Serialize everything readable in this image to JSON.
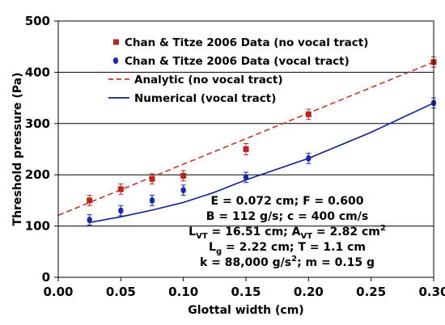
{
  "chart_data": {
    "type": "scatter",
    "xlabel": "Glottal  width (cm)",
    "ylabel": "Threshold pressure (Pa)",
    "xlim": [
      0.0,
      0.3
    ],
    "ylim": [
      0,
      500
    ],
    "x_ticks": [
      "0.00",
      "0.05",
      "0.10",
      "0.15",
      "0.20",
      "0.25",
      "0.30"
    ],
    "y_ticks": [
      "0",
      "100",
      "200",
      "300",
      "400",
      "500"
    ],
    "grid": "horizontal",
    "legend_position": "top-left",
    "series": [
      {
        "name": "Chan & Titze 2006 Data (no vocal tract)",
        "kind": "points",
        "marker": "square",
        "color": "#b5271f",
        "x": [
          0.025,
          0.05,
          0.075,
          0.1,
          0.15,
          0.2,
          0.3
        ],
        "y": [
          150,
          172,
          192,
          198,
          250,
          318,
          420
        ],
        "err": [
          10,
          10,
          10,
          10,
          11,
          10,
          10
        ]
      },
      {
        "name": "Chan & Titze 2006 Data (vocal tract)",
        "kind": "points",
        "marker": "circle",
        "color": "#1a2aa6",
        "x": [
          0.025,
          0.05,
          0.075,
          0.1,
          0.15,
          0.2,
          0.3
        ],
        "y": [
          112,
          130,
          150,
          170,
          195,
          232,
          340
        ],
        "err": [
          10,
          10,
          10,
          10,
          10,
          10,
          10
        ]
      },
      {
        "name": "Analytic (no vocal tract)",
        "kind": "line",
        "dash": true,
        "color": "#c0392b",
        "x": [
          0.0,
          0.3
        ],
        "y": [
          121,
          420
        ]
      },
      {
        "name": "Numerical (vocal tract)",
        "kind": "line",
        "dash": false,
        "color": "#0e1d8f",
        "x": [
          0.025,
          0.05,
          0.075,
          0.1,
          0.125,
          0.15,
          0.2,
          0.25,
          0.3
        ],
        "y": [
          107,
          118,
          131,
          146,
          166,
          190,
          232,
          283,
          340
        ]
      }
    ],
    "annotations": [
      "E = 0.072 cm; F = 0.600",
      "B = 112 g/s; c = 400 cm/s",
      "L<sub>VT</sub> = 16.51 cm;  A<sub>VT</sub> = 2.82 cm<sup>2</sup>",
      "L<sub>g</sub> = 2.22 cm; T = 1.1 cm",
      "k = 88,000 g/s<sup>2</sup>; m = 0.15 g"
    ]
  }
}
